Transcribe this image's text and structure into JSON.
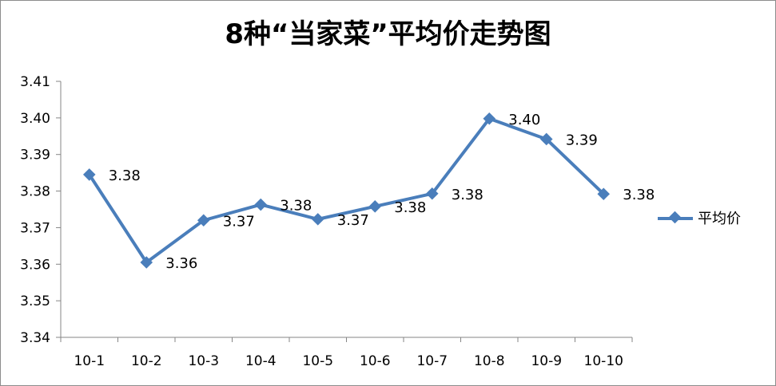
{
  "chart_data": {
    "type": "line",
    "title": "8种“当家菜”平均价走势图",
    "xlabel": "",
    "ylabel": "",
    "categories": [
      "10-1",
      "10-2",
      "10-3",
      "10-4",
      "10-5",
      "10-6",
      "10-7",
      "10-8",
      "10-9",
      "10-10"
    ],
    "series": [
      {
        "name": "平均价",
        "values": [
          3.3845,
          3.3605,
          3.372,
          3.3763,
          3.3723,
          3.3758,
          3.3793,
          3.3998,
          3.3942,
          3.3792
        ],
        "labels": [
          "3.38",
          "3.36",
          "3.37",
          "3.38",
          "3.37",
          "3.38",
          "3.38",
          "3.40",
          "3.39",
          "3.38"
        ],
        "color": "#4a7ebb"
      }
    ],
    "ylim": [
      3.34,
      3.41
    ],
    "yticks": [
      "3.34",
      "3.35",
      "3.36",
      "3.37",
      "3.38",
      "3.39",
      "3.40",
      "3.41"
    ],
    "grid": false,
    "legend": "right"
  }
}
